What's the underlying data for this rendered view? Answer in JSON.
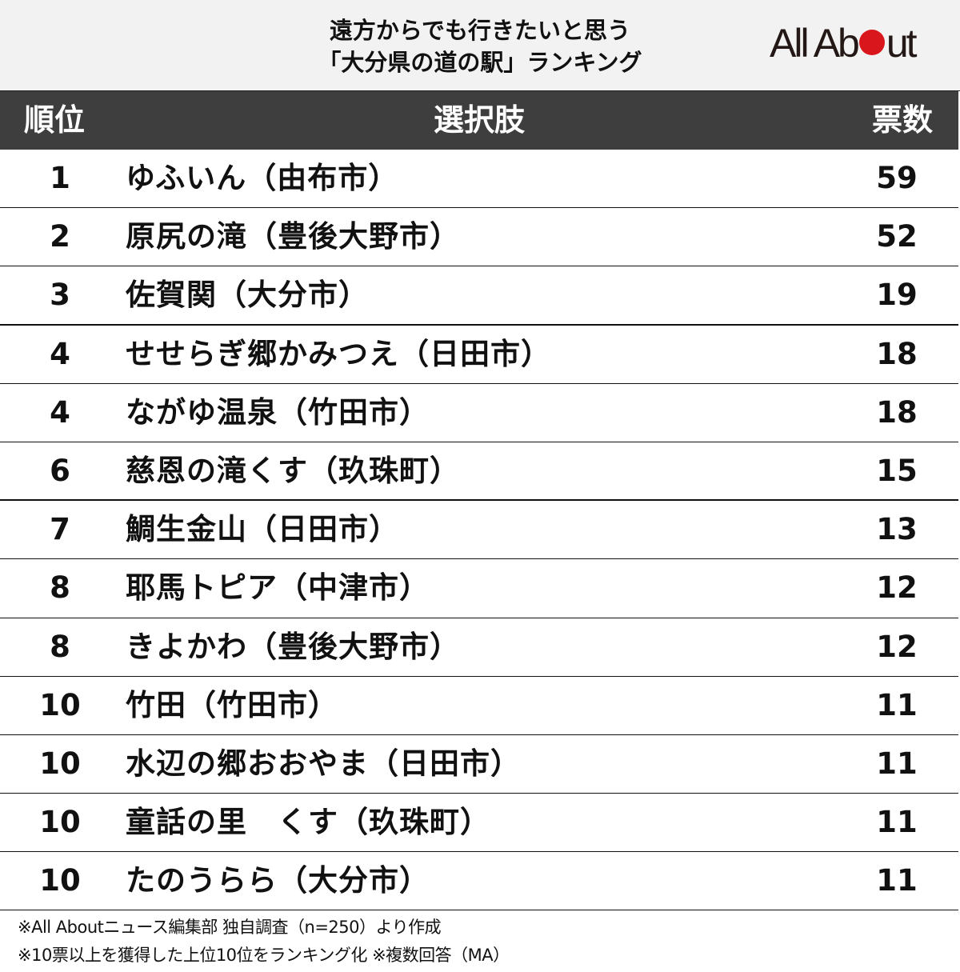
{
  "title": {
    "line1": "遠方からでも行きたいと思う",
    "line2": "「大分県の道の駅」ランキング"
  },
  "logo": {
    "text_before": "All Ab",
    "text_after": "ut",
    "dot_color": "#d9161c"
  },
  "table": {
    "headers": {
      "rank": "順位",
      "choice": "選択肢",
      "votes": "票数"
    },
    "rows": [
      {
        "rank": "1",
        "name": "ゆふいん（由布市）",
        "votes": "59"
      },
      {
        "rank": "2",
        "name": "原尻の滝（豊後大野市）",
        "votes": "52"
      },
      {
        "rank": "3",
        "name": "佐賀関（大分市）",
        "votes": "19"
      },
      {
        "rank": "4",
        "name": "せせらぎ郷かみつえ（日田市）",
        "votes": "18"
      },
      {
        "rank": "4",
        "name": "ながゆ温泉（竹田市）",
        "votes": "18"
      },
      {
        "rank": "6",
        "name": "慈恩の滝くす（玖珠町）",
        "votes": "15"
      },
      {
        "rank": "7",
        "name": "鯛生金山（日田市）",
        "votes": "13"
      },
      {
        "rank": "8",
        "name": "耶馬トピア（中津市）",
        "votes": "12"
      },
      {
        "rank": "8",
        "name": "きよかわ（豊後大野市）",
        "votes": "12"
      },
      {
        "rank": "10",
        "name": "竹田（竹田市）",
        "votes": "11"
      },
      {
        "rank": "10",
        "name": "水辺の郷おおやま（日田市）",
        "votes": "11"
      },
      {
        "rank": "10",
        "name": "童話の里　くす（玖珠町）",
        "votes": "11"
      },
      {
        "rank": "10",
        "name": "たのうらら（大分市）",
        "votes": "11"
      }
    ]
  },
  "footer": {
    "note1": "※All Aboutニュース編集部 独自調査（n=250）より作成",
    "note2": "※10票以上を獲得した上位10位をランキング化 ※複数回答（MA）"
  },
  "colors": {
    "header_bg": "#3e3e3e",
    "title_bg": "#f2f2f2",
    "accent_red": "#d9161c"
  }
}
